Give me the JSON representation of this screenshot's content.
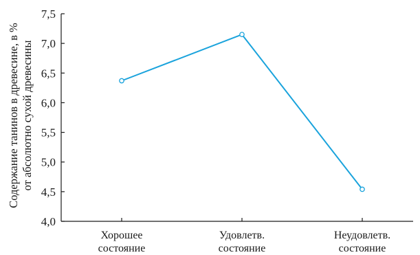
{
  "chart_data": {
    "type": "line",
    "categories": [
      [
        "Хорошее",
        "состояние"
      ],
      [
        "Удовлетв.",
        "состояние"
      ],
      [
        "Неудовлетв.",
        "состояние"
      ]
    ],
    "series": [
      {
        "values": [
          6.37,
          7.15,
          4.54
        ]
      }
    ],
    "ylabel": [
      "Содержание танинов в древесине, в %",
      "от абсолютно сухой древесины"
    ],
    "yticks": [
      "4,0",
      "4,5",
      "5,0",
      "5,5",
      "6,0",
      "6,5",
      "7,0",
      "7,5"
    ],
    "ylim": [
      4.0,
      7.5
    ],
    "grid": false,
    "legend": "none",
    "colors": {
      "line": "#1aa3dc",
      "axis": "#1a1a1a",
      "marker_fill": "#ffffff"
    }
  }
}
